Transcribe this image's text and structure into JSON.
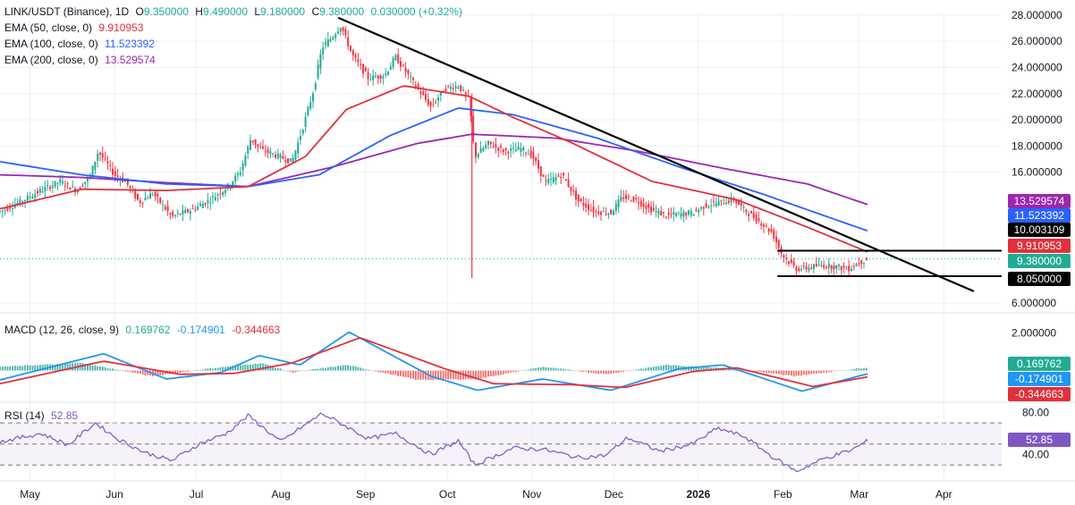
{
  "header": {
    "symbol": "LINK/USDT (Binance), 1D",
    "o_label": "O",
    "o_value": "9.350000",
    "h_label": "H",
    "h_value": "9.490000",
    "l_label": "L",
    "l_value": "9.180000",
    "c_label": "C",
    "c_value": "9.380000",
    "change": "0.030000 (+0.32%)"
  },
  "ema": [
    {
      "label": "EMA (50, close, 0)",
      "value": "9.910953",
      "color": "#e0313b"
    },
    {
      "label": "EMA (100, close, 0)",
      "value": "11.523392",
      "color": "#2962ff"
    },
    {
      "label": "EMA (200, close, 0)",
      "value": "13.529574",
      "color": "#9c27b0"
    }
  ],
  "macd": {
    "label": "MACD (12, 26, close, 9)",
    "hist": "0.169762",
    "macd": "-0.174901",
    "signal": "-0.344663"
  },
  "rsi": {
    "label": "RSI (14)",
    "value": "52.85"
  },
  "price_tags": [
    {
      "value": "13.529574",
      "color": "#9c27b0"
    },
    {
      "value": "11.523392",
      "color": "#2962ff"
    },
    {
      "value": "10.003109",
      "color": "#000000"
    },
    {
      "value": "9.910953",
      "color": "#e0313b"
    },
    {
      "value": "9.380000",
      "color": "#22ab94"
    },
    {
      "value": "8.050000",
      "color": "#000000"
    }
  ],
  "macd_tags": [
    {
      "value": "0.169762",
      "color": "#22ab94"
    },
    {
      "value": "-0.174901",
      "color": "#2196f3"
    },
    {
      "value": "-0.344663",
      "color": "#e0313b"
    }
  ],
  "rsi_tag": {
    "value": "52.85",
    "color": "#7e57c2"
  },
  "colors": {
    "up": "#22ab94",
    "down": "#f23645",
    "trend": "#000000",
    "grid": "#eef0f3"
  },
  "chart_data": {
    "type": "candlestick",
    "x_axis": {
      "labels": [
        "May",
        "Jun",
        "Jul",
        "Aug",
        "Sep",
        "Oct",
        "Nov",
        "Dec",
        "2026",
        "Feb",
        "Mar",
        "Apr"
      ]
    },
    "price_axis": {
      "ticks": [
        "28.000000",
        "26.000000",
        "24.000000",
        "22.000000",
        "20.000000",
        "18.000000",
        "16.000000",
        "6.000000"
      ],
      "ticks_values": [
        28,
        26,
        24,
        22,
        20,
        18,
        16,
        6
      ],
      "range": [
        5.8,
        28.2
      ]
    },
    "macd_axis": {
      "ticks": [
        "2.000000"
      ]
    },
    "rsi_axis": {
      "ticks": [
        "80.00",
        "40.00"
      ],
      "bands": [
        70,
        50,
        30
      ]
    },
    "price_path": [
      [
        "2025-04-20",
        13.0
      ],
      [
        "2025-04-28",
        13.8
      ],
      [
        "2025-05-05",
        14.6
      ],
      [
        "2025-05-12",
        15.3
      ],
      [
        "2025-05-18",
        14.6
      ],
      [
        "2025-05-23",
        15.7
      ],
      [
        "2025-05-26",
        17.6
      ],
      [
        "2025-06-01",
        15.8
      ],
      [
        "2025-06-05",
        15.3
      ],
      [
        "2025-06-10",
        13.7
      ],
      [
        "2025-06-15",
        14.4
      ],
      [
        "2025-06-22",
        12.6
      ],
      [
        "2025-06-30",
        13.2
      ],
      [
        "2025-07-06",
        13.9
      ],
      [
        "2025-07-12",
        14.8
      ],
      [
        "2025-07-17",
        16.0
      ],
      [
        "2025-07-21",
        18.6
      ],
      [
        "2025-07-24",
        17.8
      ],
      [
        "2025-07-30",
        17.3
      ],
      [
        "2025-08-05",
        16.8
      ],
      [
        "2025-08-09",
        19.4
      ],
      [
        "2025-08-13",
        22.3
      ],
      [
        "2025-08-16",
        25.5
      ],
      [
        "2025-08-20",
        26.4
      ],
      [
        "2025-08-23",
        27.2
      ],
      [
        "2025-08-27",
        25.0
      ],
      [
        "2025-09-02",
        23.2
      ],
      [
        "2025-09-08",
        23.4
      ],
      [
        "2025-09-12",
        24.8
      ],
      [
        "2025-09-16",
        23.6
      ],
      [
        "2025-09-20",
        22.4
      ],
      [
        "2025-09-25",
        21.0
      ],
      [
        "2025-09-30",
        22.4
      ],
      [
        "2025-10-05",
        22.6
      ],
      [
        "2025-10-09",
        21.5
      ],
      [
        "2025-10-11",
        17.2
      ],
      [
        "2025-10-16",
        18.2
      ],
      [
        "2025-10-22",
        17.6
      ],
      [
        "2025-10-28",
        17.8
      ],
      [
        "2025-11-01",
        17.3
      ],
      [
        "2025-11-06",
        15.2
      ],
      [
        "2025-11-12",
        15.8
      ],
      [
        "2025-11-18",
        13.8
      ],
      [
        "2025-11-24",
        13.0
      ],
      [
        "2025-11-30",
        12.9
      ],
      [
        "2025-12-04",
        14.1
      ],
      [
        "2025-12-09",
        13.9
      ],
      [
        "2025-12-14",
        13.2
      ],
      [
        "2025-12-20",
        12.7
      ],
      [
        "2025-12-25",
        12.8
      ],
      [
        "2025-12-30",
        12.9
      ],
      [
        "2026-01-04",
        13.5
      ],
      [
        "2026-01-09",
        13.7
      ],
      [
        "2026-01-14",
        13.9
      ],
      [
        "2026-01-18",
        13.1
      ],
      [
        "2026-01-23",
        12.3
      ],
      [
        "2026-01-28",
        11.4
      ],
      [
        "2026-02-01",
        9.6
      ],
      [
        "2026-02-06",
        8.6
      ],
      [
        "2026-02-10",
        8.7
      ],
      [
        "2026-02-15",
        8.9
      ],
      [
        "2026-02-20",
        8.8
      ],
      [
        "2026-02-25",
        8.6
      ],
      [
        "2026-02-28",
        9.0
      ],
      [
        "2026-03-02",
        9.2
      ],
      [
        "2026-03-04",
        9.38
      ]
    ],
    "ema_paths": {
      "ema50": [
        [
          "2025-04-20",
          13.2
        ],
        [
          "2025-05-20",
          14.7
        ],
        [
          "2025-06-20",
          14.6
        ],
        [
          "2025-07-20",
          14.9
        ],
        [
          "2025-08-10",
          17.2
        ],
        [
          "2025-08-25",
          20.8
        ],
        [
          "2025-09-15",
          22.6
        ],
        [
          "2025-10-09",
          21.8
        ],
        [
          "2025-10-25",
          20.2
        ],
        [
          "2025-11-15",
          18.3
        ],
        [
          "2025-12-15",
          15.3
        ],
        [
          "2026-01-15",
          13.9
        ],
        [
          "2026-02-10",
          11.8
        ],
        [
          "2026-03-04",
          9.91
        ]
      ],
      "ema100": [
        [
          "2025-04-20",
          16.8
        ],
        [
          "2025-05-20",
          15.8
        ],
        [
          "2025-06-20",
          15.1
        ],
        [
          "2025-07-20",
          14.9
        ],
        [
          "2025-08-15",
          15.8
        ],
        [
          "2025-09-10",
          18.8
        ],
        [
          "2025-10-05",
          20.9
        ],
        [
          "2025-10-25",
          20.4
        ],
        [
          "2025-11-25",
          18.6
        ],
        [
          "2025-12-25",
          16.4
        ],
        [
          "2026-01-25",
          14.3
        ],
        [
          "2026-03-04",
          11.52
        ]
      ],
      "ema200": [
        [
          "2025-04-20",
          15.8
        ],
        [
          "2025-05-20",
          15.6
        ],
        [
          "2025-06-20",
          15.2
        ],
        [
          "2025-07-20",
          14.9
        ],
        [
          "2025-08-20",
          16.4
        ],
        [
          "2025-09-20",
          18.2
        ],
        [
          "2025-10-10",
          18.9
        ],
        [
          "2025-11-10",
          18.6
        ],
        [
          "2025-12-10",
          17.6
        ],
        [
          "2026-01-10",
          16.3
        ],
        [
          "2026-02-10",
          15.1
        ],
        [
          "2026-03-04",
          13.53
        ]
      ]
    },
    "spike": {
      "date": "2025-10-10",
      "high": 22.0,
      "low": 7.9
    },
    "trendline": [
      [
        "2025-08-22",
        27.8
      ],
      [
        "2026-04-12",
        6.9
      ]
    ],
    "horizontal_levels": [
      {
        "start": "2026-01-30",
        "end": "2026-04-01",
        "value": 10.0
      },
      {
        "start": "2026-01-30",
        "end": "2026-04-01",
        "value": 8.05
      }
    ],
    "current_price": 9.38,
    "macd_series": {
      "macd": [
        [
          "2025-04-20",
          -0.5
        ],
        [
          "2025-05-28",
          0.9
        ],
        [
          "2025-06-20",
          -0.45
        ],
        [
          "2025-07-10",
          -0.1
        ],
        [
          "2025-07-24",
          0.8
        ],
        [
          "2025-08-08",
          0.3
        ],
        [
          "2025-08-26",
          2.05
        ],
        [
          "2025-09-25",
          -0.3
        ],
        [
          "2025-10-12",
          -1.05
        ],
        [
          "2025-11-05",
          -0.45
        ],
        [
          "2025-11-30",
          -1.05
        ],
        [
          "2025-12-25",
          0.1
        ],
        [
          "2026-01-10",
          0.3
        ],
        [
          "2026-02-08",
          -1.1
        ],
        [
          "2026-03-04",
          -0.17
        ]
      ],
      "signal": [
        [
          "2025-04-20",
          -0.7
        ],
        [
          "2025-05-28",
          0.5
        ],
        [
          "2025-06-25",
          -0.2
        ],
        [
          "2025-07-15",
          -0.15
        ],
        [
          "2025-08-05",
          0.4
        ],
        [
          "2025-08-30",
          1.75
        ],
        [
          "2025-09-30",
          0.1
        ],
        [
          "2025-10-18",
          -0.7
        ],
        [
          "2025-11-15",
          -0.75
        ],
        [
          "2025-12-05",
          -0.9
        ],
        [
          "2025-12-30",
          -0.05
        ],
        [
          "2026-01-15",
          0.15
        ],
        [
          "2026-02-12",
          -0.85
        ],
        [
          "2026-03-04",
          -0.34
        ]
      ],
      "hist": [
        [
          "2025-04-20",
          0.2
        ],
        [
          "2025-05-20",
          0.4
        ],
        [
          "2025-06-15",
          -0.3
        ],
        [
          "2025-07-05",
          0.1
        ],
        [
          "2025-07-25",
          0.4
        ],
        [
          "2025-08-05",
          -0.1
        ],
        [
          "2025-08-25",
          0.3
        ],
        [
          "2025-09-20",
          -0.5
        ],
        [
          "2025-10-12",
          -0.45
        ],
        [
          "2025-11-05",
          0.2
        ],
        [
          "2025-11-28",
          -0.2
        ],
        [
          "2025-12-20",
          0.3
        ],
        [
          "2026-01-10",
          0.15
        ],
        [
          "2026-02-05",
          -0.3
        ],
        [
          "2026-03-04",
          0.17
        ]
      ]
    },
    "rsi_path": [
      [
        "2025-04-20",
        52
      ],
      [
        "2025-05-05",
        60
      ],
      [
        "2025-05-15",
        49
      ],
      [
        "2025-05-25",
        70
      ],
      [
        "2025-06-02",
        55
      ],
      [
        "2025-06-12",
        42
      ],
      [
        "2025-06-22",
        34
      ],
      [
        "2025-07-02",
        50
      ],
      [
        "2025-07-12",
        60
      ],
      [
        "2025-07-20",
        77
      ],
      [
        "2025-08-01",
        52
      ],
      [
        "2025-08-08",
        65
      ],
      [
        "2025-08-16",
        79
      ],
      [
        "2025-08-24",
        68
      ],
      [
        "2025-09-02",
        55
      ],
      [
        "2025-09-12",
        60
      ],
      [
        "2025-09-25",
        40
      ],
      [
        "2025-10-05",
        53
      ],
      [
        "2025-10-11",
        30
      ],
      [
        "2025-10-25",
        46
      ],
      [
        "2025-11-05",
        45
      ],
      [
        "2025-11-18",
        37
      ],
      [
        "2025-11-28",
        39
      ],
      [
        "2025-12-06",
        56
      ],
      [
        "2025-12-18",
        43
      ],
      [
        "2025-12-30",
        50
      ],
      [
        "2026-01-08",
        65
      ],
      [
        "2026-01-18",
        57
      ],
      [
        "2026-01-28",
        38
      ],
      [
        "2026-02-06",
        24
      ],
      [
        "2026-02-16",
        36
      ],
      [
        "2026-02-26",
        44
      ],
      [
        "2026-03-04",
        52.85
      ]
    ]
  }
}
